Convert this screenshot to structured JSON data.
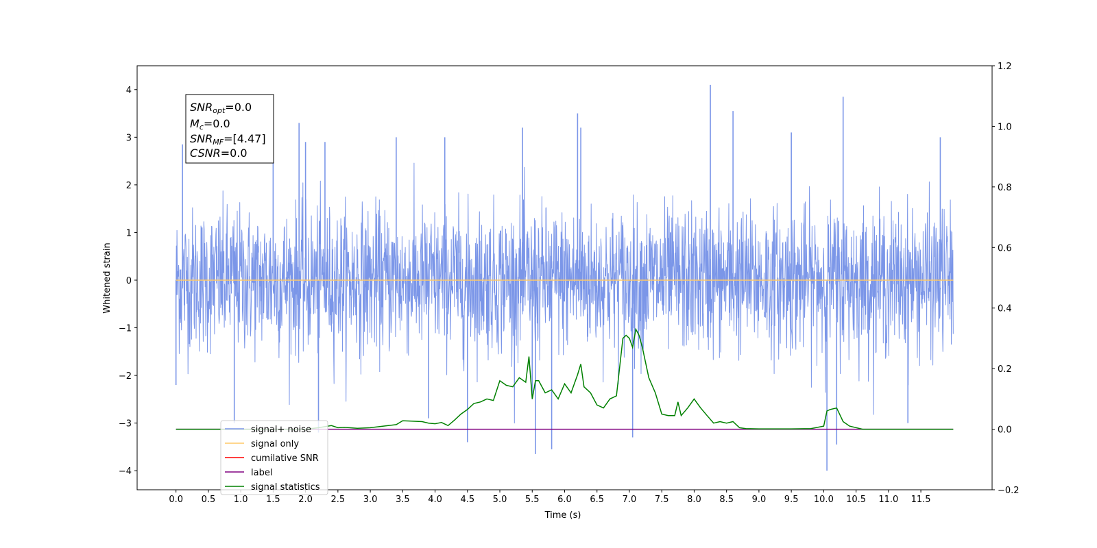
{
  "chart_data": {
    "type": "line",
    "xlabel": "Time (s)",
    "ylabel": "Whitened strain",
    "xlim": [
      -0.6,
      12.6
    ],
    "ylim": [
      -4.4,
      4.5
    ],
    "y2lim": [
      -0.2,
      1.2
    ],
    "x_ticks": [
      "0.0",
      "0.5",
      "1.0",
      "1.5",
      "2.0",
      "2.5",
      "3.0",
      "3.5",
      "4.0",
      "4.5",
      "5.0",
      "5.5",
      "6.0",
      "6.5",
      "7.0",
      "7.5",
      "8.0",
      "8.5",
      "9.0",
      "9.5",
      "10.0",
      "10.5",
      "11.0",
      "11.5"
    ],
    "y_ticks": [
      "4",
      "3",
      "2",
      "1",
      "0",
      "−1",
      "−2",
      "−3",
      "−4"
    ],
    "y2_ticks": [
      "1.2",
      "1.0",
      "0.8",
      "0.6",
      "0.4",
      "0.2",
      "0.0",
      "−0.2"
    ],
    "annotation": {
      "snr_opt": {
        "base": "SNR",
        "sub": "opt",
        "value": "=0.0"
      },
      "mc": {
        "base": "M",
        "sub": "c",
        "value": "=0.0"
      },
      "snr_mf": {
        "base": "SNR",
        "sub": "MF",
        "value": "=[4.47]"
      },
      "csnr": {
        "base": "CSNR",
        "sub": "",
        "value": "=0.0"
      }
    },
    "legend_position": "lower-left",
    "legend": [
      {
        "label": "signal+ noise",
        "color": "#7b96e8"
      },
      {
        "label": "signal only",
        "color": "#ffc966"
      },
      {
        "label": "cumilative SNR",
        "color": "#ff0000"
      },
      {
        "label": "label",
        "color": "#800080"
      },
      {
        "label": "signal statistics",
        "color": "#008000"
      }
    ],
    "series": [
      {
        "name": "signal+ noise",
        "axis": "left",
        "color": "#7b96e8",
        "x_range": [
          0.0,
          12.0
        ],
        "envelope_sigma": 0.75,
        "spikes": [
          {
            "x": 0.1,
            "y": 2.85
          },
          {
            "x": 0.0,
            "y": -2.2
          },
          {
            "x": 0.9,
            "y": -3.0
          },
          {
            "x": 1.5,
            "y": 3.3
          },
          {
            "x": 1.9,
            "y": 3.3
          },
          {
            "x": 2.0,
            "y": 2.9
          },
          {
            "x": 2.2,
            "y": -3.2
          },
          {
            "x": 2.3,
            "y": 2.9
          },
          {
            "x": 3.4,
            "y": 3.0
          },
          {
            "x": 3.9,
            "y": -2.9
          },
          {
            "x": 4.15,
            "y": 3.0
          },
          {
            "x": 4.5,
            "y": -3.4
          },
          {
            "x": 5.35,
            "y": 3.2
          },
          {
            "x": 5.5,
            "y": -2.5
          },
          {
            "x": 5.55,
            "y": -3.65
          },
          {
            "x": 5.8,
            "y": -3.55
          },
          {
            "x": 6.2,
            "y": 3.5
          },
          {
            "x": 6.25,
            "y": 3.2
          },
          {
            "x": 7.05,
            "y": -3.3
          },
          {
            "x": 8.25,
            "y": 4.1
          },
          {
            "x": 8.6,
            "y": 3.55
          },
          {
            "x": 9.5,
            "y": 3.1
          },
          {
            "x": 10.05,
            "y": -4.0
          },
          {
            "x": 10.2,
            "y": -3.45
          },
          {
            "x": 10.3,
            "y": 3.85
          },
          {
            "x": 11.3,
            "y": -3.0
          },
          {
            "x": 11.8,
            "y": 3.0
          }
        ]
      },
      {
        "name": "signal only",
        "axis": "left",
        "color": "#ffc966",
        "x": [
          0.0,
          12.0
        ],
        "y": [
          0.0,
          0.0
        ]
      },
      {
        "name": "label",
        "axis": "right",
        "color": "#800080",
        "x": [
          0.0,
          12.0
        ],
        "y": [
          0.0,
          0.0
        ]
      },
      {
        "name": "signal statistics",
        "axis": "right",
        "color": "#008000",
        "x": [
          0.0,
          0.5,
          1.0,
          1.5,
          2.0,
          2.2,
          2.4,
          2.5,
          2.6,
          2.8,
          3.0,
          3.2,
          3.4,
          3.5,
          3.6,
          3.8,
          3.9,
          4.0,
          4.1,
          4.2,
          4.3,
          4.4,
          4.5,
          4.6,
          4.7,
          4.8,
          4.9,
          5.0,
          5.1,
          5.2,
          5.3,
          5.4,
          5.45,
          5.5,
          5.55,
          5.6,
          5.7,
          5.8,
          5.9,
          6.0,
          6.1,
          6.2,
          6.25,
          6.3,
          6.4,
          6.5,
          6.6,
          6.7,
          6.8,
          6.9,
          6.95,
          7.0,
          7.05,
          7.1,
          7.15,
          7.2,
          7.25,
          7.3,
          7.4,
          7.5,
          7.6,
          7.7,
          7.75,
          7.8,
          7.9,
          8.0,
          8.1,
          8.2,
          8.3,
          8.4,
          8.5,
          8.6,
          8.7,
          8.8,
          9.0,
          9.5,
          9.8,
          10.0,
          10.05,
          10.1,
          10.2,
          10.3,
          10.4,
          10.6,
          11.0,
          12.0
        ],
        "y": [
          0.0,
          0.0,
          0.0,
          0.0,
          0.0,
          0.005,
          0.012,
          0.005,
          0.006,
          0.003,
          0.005,
          0.01,
          0.015,
          0.028,
          0.027,
          0.025,
          0.02,
          0.018,
          0.022,
          0.012,
          0.03,
          0.05,
          0.065,
          0.085,
          0.09,
          0.1,
          0.095,
          0.16,
          0.145,
          0.14,
          0.17,
          0.155,
          0.24,
          0.1,
          0.16,
          0.16,
          0.12,
          0.13,
          0.1,
          0.15,
          0.12,
          0.18,
          0.215,
          0.14,
          0.12,
          0.08,
          0.07,
          0.1,
          0.11,
          0.3,
          0.31,
          0.3,
          0.27,
          0.33,
          0.31,
          0.27,
          0.22,
          0.17,
          0.12,
          0.05,
          0.045,
          0.045,
          0.09,
          0.045,
          0.07,
          0.1,
          0.07,
          0.045,
          0.02,
          0.025,
          0.02,
          0.025,
          0.005,
          0.002,
          0.001,
          0.001,
          0.002,
          0.01,
          0.06,
          0.065,
          0.07,
          0.025,
          0.01,
          0.0,
          0.0,
          0.0
        ]
      }
    ]
  }
}
